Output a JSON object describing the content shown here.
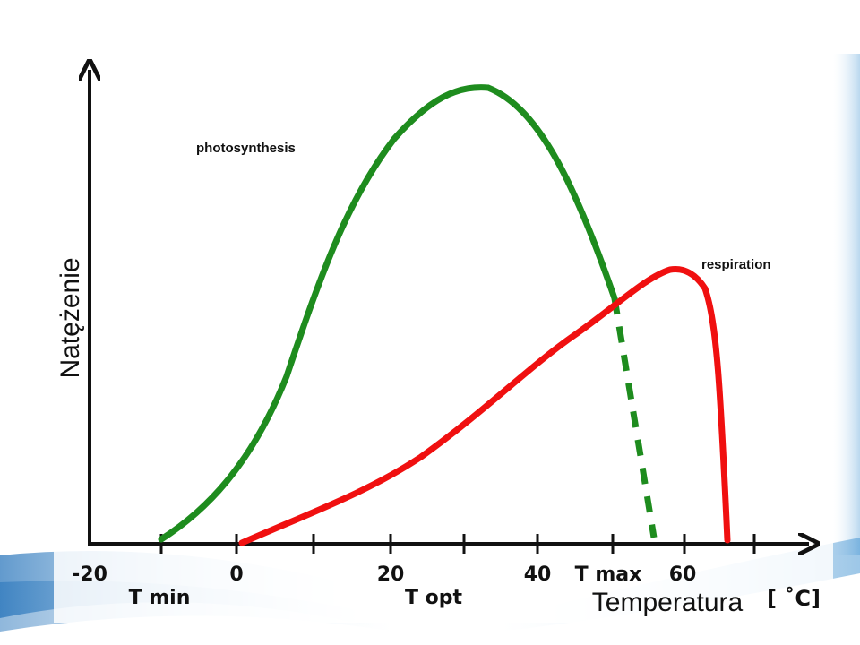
{
  "axes": {
    "y_label": "Natężenie",
    "x_label": "Temperatura",
    "unit": "[ ˚C]"
  },
  "x_tick_labels": [
    "-20",
    "0",
    "20",
    "40",
    "T max",
    "60"
  ],
  "marker_labels": [
    "T min",
    "T opt"
  ],
  "curves": {
    "photosynthesis": "photosynthesis",
    "respiration": "respiration"
  }
}
